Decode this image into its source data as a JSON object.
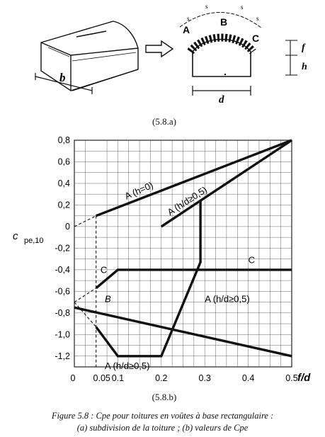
{
  "figure": {
    "sublabel_a": "(5.8.a)",
    "sublabel_b": "(5.8.b)",
    "caption_line1": "Figure 5.8 : Cpe pour toitures en voûtes à base rectangulaire :",
    "caption_line2": "(a) subdivision de la toiture ; (b) valeurs de Cpe"
  },
  "diagram": {
    "label_b": "b",
    "label_d": "d",
    "label_f": "f",
    "label_h": "h",
    "zone_a": "A",
    "zone_b": "B",
    "zone_c": "C",
    "label_s": "s"
  },
  "chart_data": {
    "type": "line",
    "xlabel": "f/d",
    "ylabel": "cpe,10",
    "xlim": [
      0,
      0.5
    ],
    "ylim": [
      -1.3,
      0.8
    ],
    "x_ticks": [
      0,
      0.05,
      0.1,
      0.2,
      0.3,
      0.4,
      0.5
    ],
    "x_tick_labels": [
      "0",
      "0.05",
      "0.1",
      "0.2",
      "0.3",
      "0.4",
      "0.5"
    ],
    "y_ticks": [
      0.8,
      0.6,
      0.4,
      0.2,
      0,
      -0.2,
      -0.4,
      -0.6,
      -0.8,
      -1.0,
      -1.2
    ],
    "y_tick_labels": [
      "0,8",
      "0,6",
      "0,4",
      "0,2",
      "0",
      "-0,2",
      "-0,4",
      "-0,6",
      "-0,8",
      "-1,0",
      "-1,2"
    ],
    "grid": true,
    "series": [
      {
        "name": "A (h=0)",
        "style": "solid",
        "points": [
          [
            0.05,
            0.1
          ],
          [
            0.5,
            0.8
          ]
        ]
      },
      {
        "name": "A (h/d≥0,5)",
        "style": "solid",
        "points": [
          [
            0.2,
            0.0
          ],
          [
            0.5,
            0.8
          ]
        ]
      },
      {
        "name": "",
        "style": "solid",
        "points": [
          [
            0.29,
            0.25
          ],
          [
            0.29,
            -0.33
          ],
          [
            0.2,
            -1.2
          ],
          [
            0.1,
            -1.2
          ],
          [
            0.05,
            -0.93
          ]
        ]
      },
      {
        "name": "C",
        "style": "solid",
        "points": [
          [
            0.05,
            -0.57
          ],
          [
            0.1,
            -0.4
          ],
          [
            0.5,
            -0.4
          ]
        ]
      },
      {
        "name": "B",
        "style": "solid",
        "points": [
          [
            0.0,
            -0.75
          ],
          [
            0.5,
            -1.2
          ]
        ]
      },
      {
        "name": "",
        "style": "dashed",
        "points": [
          [
            0,
            0
          ],
          [
            0.05,
            0.1
          ]
        ]
      },
      {
        "name": "",
        "style": "dashed",
        "points": [
          [
            0,
            -0.7
          ],
          [
            0.05,
            -0.57
          ]
        ]
      },
      {
        "name": "",
        "style": "dashed",
        "points": [
          [
            0,
            -0.7
          ],
          [
            0.05,
            -0.93
          ]
        ]
      },
      {
        "name": "",
        "style": "dashed",
        "points": [
          [
            0.05,
            0.1
          ],
          [
            0.05,
            -1.3
          ]
        ]
      }
    ],
    "annotations": [
      {
        "text": "A (h=0)",
        "x": 0.12,
        "y": 0.25
      },
      {
        "text": "A (h/d≥0,5)",
        "x": 0.22,
        "y": 0.1
      },
      {
        "text": "C",
        "x": 0.4,
        "y": -0.34
      },
      {
        "text": "C",
        "x": 0.06,
        "y": -0.43
      },
      {
        "text": "B",
        "x": 0.07,
        "y": -0.7
      },
      {
        "text": "A (h/d≥0,5)",
        "x": 0.3,
        "y": -0.7
      },
      {
        "text": "A (h/d≥0,5)",
        "x": 0.07,
        "y": -1.32
      }
    ]
  }
}
